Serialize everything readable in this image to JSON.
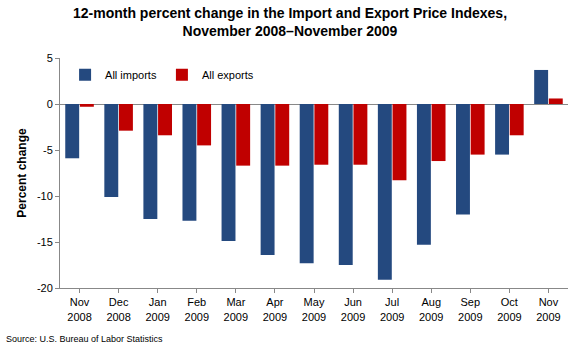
{
  "chart_data": {
    "type": "bar",
    "title": "12-month percent change in the Import and Export Price Indexes,\nNovember 2008–November 2009",
    "y_label": "Percent change",
    "source": "Source: U.S. Bureau of Labor Statistics",
    "categories": [
      "Nov 2008",
      "Dec 2008",
      "Jan 2009",
      "Feb 2009",
      "Mar 2009",
      "Apr 2009",
      "May 2009",
      "Jun 2009",
      "Jul 2009",
      "Aug 2009",
      "Sep 2009",
      "Oct 2009",
      "Nov 2009"
    ],
    "series": [
      {
        "name": "All imports",
        "color": "#24497f",
        "values": [
          -5.9,
          -10.1,
          -12.5,
          -12.7,
          -14.9,
          -16.4,
          -17.3,
          -17.5,
          -19.1,
          -15.3,
          -12.0,
          -5.5,
          3.7
        ]
      },
      {
        "name": "All exports",
        "color": "#c00000",
        "values": [
          -0.3,
          -2.9,
          -3.4,
          -4.5,
          -6.7,
          -6.7,
          -6.6,
          -6.6,
          -8.3,
          -6.2,
          -5.5,
          -3.4,
          0.6
        ]
      }
    ],
    "ylim": [
      -20,
      5
    ],
    "yticks": [
      -20,
      -15,
      -10,
      -5,
      0,
      5
    ],
    "grid": false,
    "legend": "upper left"
  }
}
